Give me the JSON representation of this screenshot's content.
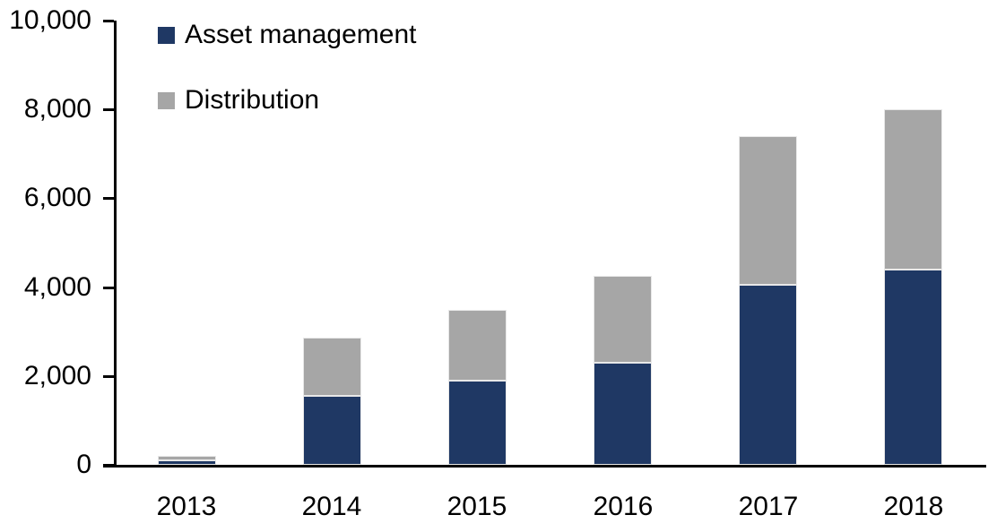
{
  "chart_data": {
    "type": "bar",
    "stacked": true,
    "title": "",
    "xlabel": "",
    "ylabel": "",
    "categories": [
      "2013",
      "2014",
      "2015",
      "2016",
      "2017",
      "2018"
    ],
    "series": [
      {
        "name": "Asset management",
        "color": "#1f3864",
        "values": [
          100,
          1550,
          1900,
          2300,
          4050,
          4400
        ]
      },
      {
        "name": "Distribution",
        "color": "#a6a6a6",
        "values": [
          100,
          1310,
          1600,
          1950,
          3350,
          3600
        ]
      }
    ],
    "totals": [
      200,
      2860,
      3500,
      4250,
      7400,
      8000
    ],
    "ylim": [
      0,
      10000
    ],
    "yticks": [
      0,
      2000,
      4000,
      6000,
      8000,
      10000
    ],
    "ytick_labels": [
      "0",
      "2,000",
      "4,000",
      "6,000",
      "8,000",
      "10,000"
    ],
    "grid": false,
    "legend_position": "top-left-inside"
  },
  "colors": {
    "asset_management": "#1f3864",
    "distribution": "#a6a6a6",
    "axis": "#000000",
    "text": "#000000",
    "bar_border": "#e8e8e8",
    "background": "#ffffff"
  }
}
